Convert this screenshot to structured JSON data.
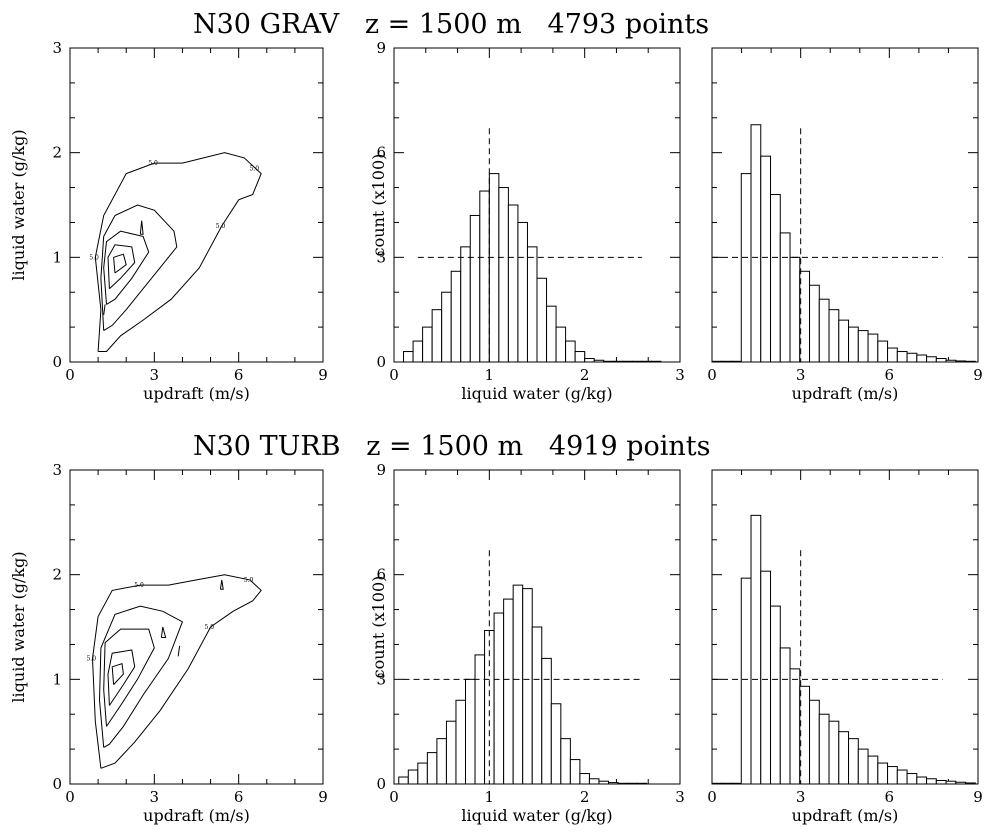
{
  "rows": [
    {
      "title": "N30 GRAV   z = 1500 m   4793 points",
      "charts": [
        {
          "type": "contour",
          "xlabel": "updraft (m/s)",
          "ylabel": "liquid water (g/kg)",
          "xlim": [
            0,
            9
          ],
          "ylim": [
            0,
            3
          ],
          "xticks": [
            "0",
            "3",
            "6",
            "9"
          ],
          "yticks": [
            "0",
            "1",
            "2",
            "3"
          ],
          "contour_label": "5.0",
          "contours": [
            [
              [
                1.0,
                0.1
              ],
              [
                1.1,
                0.5
              ],
              [
                0.9,
                1.0
              ],
              [
                1.2,
                1.4
              ],
              [
                2.0,
                1.8
              ],
              [
                3.0,
                1.9
              ],
              [
                4.0,
                1.9
              ],
              [
                5.5,
                2.0
              ],
              [
                6.2,
                1.95
              ],
              [
                6.6,
                1.85
              ],
              [
                6.8,
                1.8
              ],
              [
                6.5,
                1.6
              ],
              [
                6.0,
                1.55
              ],
              [
                5.4,
                1.3
              ],
              [
                4.6,
                0.9
              ],
              [
                3.6,
                0.6
              ],
              [
                2.6,
                0.4
              ],
              [
                1.8,
                0.25
              ],
              [
                1.3,
                0.1
              ],
              [
                1.0,
                0.1
              ]
            ],
            [
              [
                1.2,
                0.3
              ],
              [
                1.1,
                0.8
              ],
              [
                1.2,
                1.2
              ],
              [
                1.6,
                1.4
              ],
              [
                2.4,
                1.5
              ],
              [
                3.0,
                1.45
              ],
              [
                3.7,
                1.25
              ],
              [
                3.8,
                1.1
              ],
              [
                3.2,
                0.9
              ],
              [
                2.6,
                0.7
              ],
              [
                2.0,
                0.5
              ],
              [
                1.5,
                0.35
              ],
              [
                1.2,
                0.3
              ]
            ],
            [
              [
                1.3,
                0.55
              ],
              [
                1.2,
                0.9
              ],
              [
                1.3,
                1.15
              ],
              [
                1.8,
                1.25
              ],
              [
                2.6,
                1.2
              ],
              [
                2.8,
                1.05
              ],
              [
                2.2,
                0.8
              ],
              [
                1.6,
                0.6
              ],
              [
                1.3,
                0.55
              ]
            ],
            [
              [
                1.4,
                0.7
              ],
              [
                1.35,
                1.0
              ],
              [
                1.6,
                1.12
              ],
              [
                2.2,
                1.1
              ],
              [
                2.3,
                0.95
              ],
              [
                1.8,
                0.8
              ],
              [
                1.4,
                0.7
              ]
            ],
            [
              [
                1.6,
                0.85
              ],
              [
                1.55,
                1.0
              ],
              [
                1.9,
                1.03
              ],
              [
                2.0,
                0.93
              ],
              [
                1.6,
                0.85
              ]
            ]
          ],
          "islands": [
            [
              [
                2.5,
                1.22
              ],
              [
                2.55,
                1.35
              ],
              [
                2.6,
                1.22
              ]
            ]
          ],
          "segments": [
            [
              [
                1.2,
                0.45
              ],
              [
                1.25,
                0.55
              ]
            ]
          ]
        },
        {
          "type": "bar",
          "xlabel": "liquid water (g/kg)",
          "ylabel": "count (x100)",
          "xlim": [
            0,
            3
          ],
          "ylim": [
            0,
            9
          ],
          "xticks": [
            "0",
            "1",
            "2",
            "3"
          ],
          "yticks": [
            "0",
            "3",
            "6",
            "9"
          ],
          "bin_start": 0.1,
          "bin_width": 0.1,
          "values": [
            0.3,
            0.6,
            1.0,
            1.5,
            2.0,
            2.6,
            3.3,
            4.2,
            4.9,
            5.4,
            5.0,
            4.5,
            4.0,
            3.3,
            2.4,
            1.6,
            1.0,
            0.6,
            0.3,
            0.1,
            0.05,
            0.02,
            0.02,
            0.02,
            0.02,
            0.02,
            0.02
          ],
          "ref_vline": 1.0,
          "ref_hline": 3.0,
          "ref_hline_range": [
            0.25,
            2.6
          ]
        },
        {
          "type": "bar",
          "xlabel": "updraft (m/s)",
          "ylabel": "",
          "xlim": [
            0,
            9
          ],
          "ylim": [
            0,
            9
          ],
          "xticks": [
            "0",
            "3",
            "6",
            "9"
          ],
          "yticks": [
            "0",
            "3",
            "6",
            "9"
          ],
          "bin_start": 0.0,
          "bin_width": 0.33,
          "values": [
            0.02,
            0.02,
            0.02,
            5.4,
            6.8,
            5.9,
            4.8,
            3.7,
            3.0,
            2.6,
            2.2,
            1.8,
            1.5,
            1.2,
            1.0,
            0.9,
            0.8,
            0.6,
            0.4,
            0.3,
            0.25,
            0.2,
            0.15,
            0.1,
            0.05,
            0.03,
            0.02
          ],
          "ref_vline": 3.0,
          "ref_hline": 3.0,
          "ref_hline_range": [
            0,
            7.8
          ]
        }
      ]
    },
    {
      "title": "N30 TURB   z = 1500 m   4919 points",
      "charts": [
        {
          "type": "contour",
          "xlabel": "updraft (m/s)",
          "ylabel": "liquid water (g/kg)",
          "xlim": [
            0,
            9
          ],
          "ylim": [
            0,
            3
          ],
          "xticks": [
            "0",
            "3",
            "6",
            "9"
          ],
          "yticks": [
            "0",
            "1",
            "2",
            "3"
          ],
          "contour_label": "5.0",
          "contours": [
            [
              [
                1.1,
                0.15
              ],
              [
                0.9,
                0.6
              ],
              [
                0.8,
                1.2
              ],
              [
                1.0,
                1.6
              ],
              [
                1.5,
                1.85
              ],
              [
                2.5,
                1.9
              ],
              [
                3.5,
                1.9
              ],
              [
                4.5,
                1.95
              ],
              [
                5.5,
                2.0
              ],
              [
                6.4,
                1.95
              ],
              [
                6.8,
                1.85
              ],
              [
                6.5,
                1.75
              ],
              [
                5.8,
                1.65
              ],
              [
                5.0,
                1.5
              ],
              [
                4.2,
                1.1
              ],
              [
                3.2,
                0.7
              ],
              [
                2.3,
                0.4
              ],
              [
                1.6,
                0.2
              ],
              [
                1.1,
                0.15
              ]
            ],
            [
              [
                1.2,
                0.35
              ],
              [
                1.05,
                0.8
              ],
              [
                1.1,
                1.3
              ],
              [
                1.6,
                1.62
              ],
              [
                2.5,
                1.7
              ],
              [
                3.3,
                1.65
              ],
              [
                4.0,
                1.55
              ],
              [
                3.5,
                1.2
              ],
              [
                2.6,
                0.85
              ],
              [
                1.9,
                0.55
              ],
              [
                1.4,
                0.38
              ],
              [
                1.2,
                0.35
              ]
            ],
            [
              [
                1.3,
                0.55
              ],
              [
                1.2,
                0.9
              ],
              [
                1.25,
                1.35
              ],
              [
                1.8,
                1.48
              ],
              [
                2.8,
                1.48
              ],
              [
                3.0,
                1.3
              ],
              [
                2.4,
                1.0
              ],
              [
                1.8,
                0.75
              ],
              [
                1.3,
                0.55
              ]
            ],
            [
              [
                1.4,
                0.75
              ],
              [
                1.35,
                1.05
              ],
              [
                1.5,
                1.25
              ],
              [
                2.2,
                1.28
              ],
              [
                2.3,
                1.12
              ],
              [
                1.9,
                0.95
              ],
              [
                1.4,
                0.75
              ]
            ],
            [
              [
                1.55,
                0.95
              ],
              [
                1.5,
                1.12
              ],
              [
                1.85,
                1.15
              ],
              [
                1.9,
                1.05
              ],
              [
                1.55,
                0.95
              ]
            ]
          ],
          "islands": [
            [
              [
                3.25,
                1.4
              ],
              [
                3.3,
                1.5
              ],
              [
                3.4,
                1.4
              ]
            ],
            [
              [
                5.35,
                1.86
              ],
              [
                5.4,
                1.95
              ],
              [
                5.45,
                1.86
              ]
            ]
          ],
          "segments": [
            [
              [
                3.85,
                1.22
              ],
              [
                3.9,
                1.32
              ]
            ]
          ]
        },
        {
          "type": "bar",
          "xlabel": "liquid water (g/kg)",
          "ylabel": "count (x100)",
          "xlim": [
            0,
            3
          ],
          "ylim": [
            0,
            9
          ],
          "xticks": [
            "0",
            "1",
            "2",
            "3"
          ],
          "yticks": [
            "0",
            "3",
            "6",
            "9"
          ],
          "bin_start": 0.05,
          "bin_width": 0.1,
          "values": [
            0.2,
            0.4,
            0.6,
            0.9,
            1.3,
            1.8,
            2.4,
            3.0,
            3.7,
            4.4,
            4.9,
            5.3,
            5.7,
            5.6,
            4.5,
            3.6,
            2.3,
            1.3,
            0.7,
            0.3,
            0.15,
            0.08,
            0.04,
            0.02,
            0.02,
            0.02
          ],
          "ref_vline": 1.0,
          "ref_hline": 3.0,
          "ref_hline_range": [
            0.1,
            2.6
          ]
        },
        {
          "type": "bar",
          "xlabel": "updraft (m/s)",
          "ylabel": "",
          "xlim": [
            0,
            9
          ],
          "ylim": [
            0,
            9
          ],
          "xticks": [
            "0",
            "3",
            "6",
            "9"
          ],
          "yticks": [
            "0",
            "3",
            "6",
            "9"
          ],
          "bin_start": 0.0,
          "bin_width": 0.33,
          "values": [
            0.02,
            0.02,
            0.02,
            5.9,
            7.7,
            6.1,
            5.1,
            3.9,
            3.3,
            2.8,
            2.4,
            2.0,
            1.8,
            1.5,
            1.3,
            1.0,
            0.8,
            0.6,
            0.5,
            0.4,
            0.3,
            0.2,
            0.15,
            0.1,
            0.08,
            0.05,
            0.03
          ],
          "ref_vline": 3.0,
          "ref_hline": 3.0,
          "ref_hline_range": [
            0,
            7.8
          ]
        }
      ]
    }
  ]
}
